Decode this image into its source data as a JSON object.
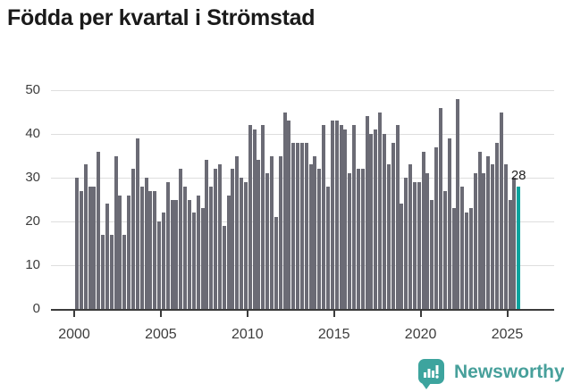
{
  "title": "Födda per kvartal i Strömstad",
  "chart_data": {
    "type": "bar",
    "title": "Födda per kvartal i Strömstad",
    "x_start": "2000 Q1",
    "x_end": "2025 Q3",
    "frequency": "quarterly",
    "x_tick_labels": [
      "2000",
      "2005",
      "2010",
      "2015",
      "2020",
      "2025"
    ],
    "y_tick_labels": [
      "0",
      "10",
      "20",
      "30",
      "40",
      "50"
    ],
    "y_ticks": [
      0,
      10,
      20,
      30,
      40,
      50
    ],
    "ylim": [
      0,
      50
    ],
    "grid": "horizontal",
    "legend": "none",
    "series": [
      {
        "name": "Födda per kvartal",
        "values": [
          30,
          27,
          33,
          28,
          28,
          36,
          17,
          24,
          17,
          35,
          26,
          17,
          26,
          32,
          39,
          28,
          30,
          27,
          27,
          20,
          22,
          29,
          25,
          25,
          32,
          28,
          25,
          22,
          26,
          23,
          34,
          28,
          32,
          33,
          19,
          26,
          32,
          35,
          30,
          29,
          42,
          41,
          34,
          42,
          31,
          35,
          21,
          35,
          45,
          43,
          38,
          38,
          38,
          38,
          33,
          35,
          32,
          42,
          28,
          43,
          43,
          42,
          41,
          31,
          42,
          32,
          32,
          44,
          40,
          41,
          45,
          40,
          33,
          38,
          42,
          24,
          30,
          33,
          29,
          29,
          36,
          31,
          25,
          37,
          46,
          27,
          39,
          23,
          48,
          28,
          22,
          23,
          31,
          36,
          31,
          35,
          33,
          38,
          45,
          33,
          25,
          30,
          28
        ]
      }
    ],
    "bar_color": "#6b6b75",
    "highlight": {
      "index": 102,
      "value": 28,
      "label": "28",
      "color": "#0ba39e"
    }
  },
  "annotation": {
    "last_value_label": "28"
  },
  "footer": {
    "brand": "Newsworthy",
    "logo_icon": "bar-chart-speech-bubble-icon",
    "logo_color": "#3da49e",
    "brand_color": "#47a09b"
  }
}
